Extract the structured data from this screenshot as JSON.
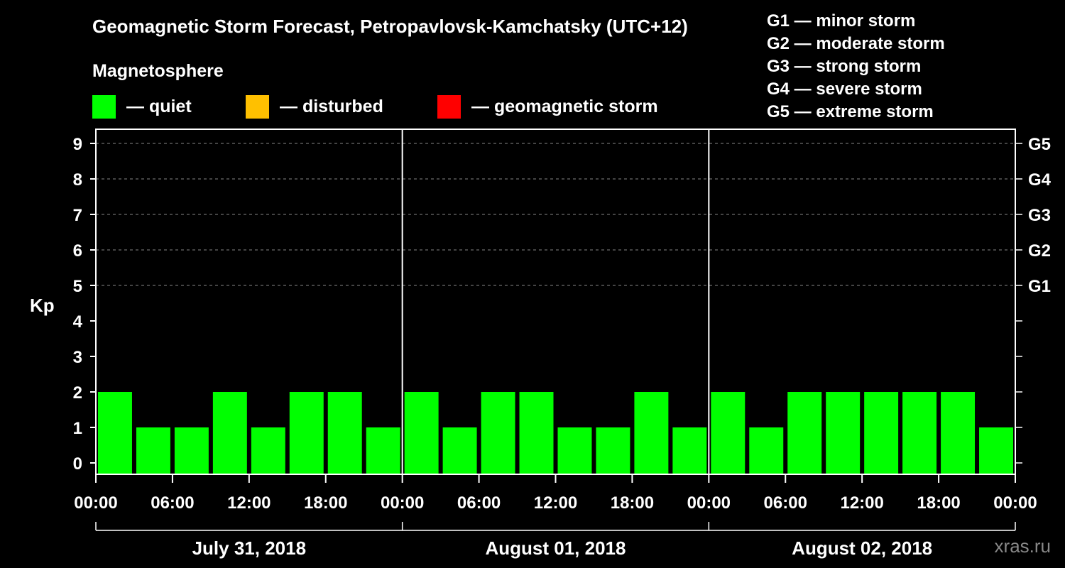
{
  "header": {
    "title": "Geomagnetic Storm Forecast, Petropavlovsk-Kamchatsky (UTC+12)",
    "subtitle": "Magnetosphere"
  },
  "legend": [
    {
      "label": "— quiet",
      "color": "#00ff00"
    },
    {
      "label": "— disturbed",
      "color": "#ffc000"
    },
    {
      "label": "— geomagnetic storm",
      "color": "#ff0000"
    }
  ],
  "storm_scale": [
    "G1 — minor storm",
    "G2 — moderate storm",
    "G3 — strong storm",
    "G4 — severe storm",
    "G5 — extreme storm"
  ],
  "watermark": "xras.ru",
  "chart_data": {
    "type": "bar",
    "title": "Geomagnetic Storm Forecast, Petropavlovsk-Kamchatsky (UTC+12)",
    "ylabel": "Kp",
    "ylim": [
      0,
      9
    ],
    "y_ticks": [
      "0",
      "1",
      "2",
      "3",
      "4",
      "5",
      "6",
      "7",
      "8",
      "9"
    ],
    "right_axis_labels": [
      {
        "kp": 5,
        "label": "G1"
      },
      {
        "kp": 6,
        "label": "G2"
      },
      {
        "kp": 7,
        "label": "G3"
      },
      {
        "kp": 8,
        "label": "G4"
      },
      {
        "kp": 9,
        "label": "G5"
      }
    ],
    "x_tick_labels": [
      "00:00",
      "06:00",
      "12:00",
      "18:00",
      "00:00",
      "06:00",
      "12:00",
      "18:00",
      "00:00",
      "06:00",
      "12:00",
      "18:00",
      "00:00"
    ],
    "days": [
      "July 31, 2018",
      "August 01, 2018",
      "August 02, 2018"
    ],
    "interval_hours": 3,
    "values": [
      2,
      1,
      1,
      2,
      1,
      2,
      2,
      1,
      2,
      1,
      2,
      2,
      1,
      1,
      2,
      1,
      2,
      1,
      2,
      2,
      2,
      2,
      2,
      1
    ],
    "bar_color": "#00ff00",
    "grid": true
  }
}
